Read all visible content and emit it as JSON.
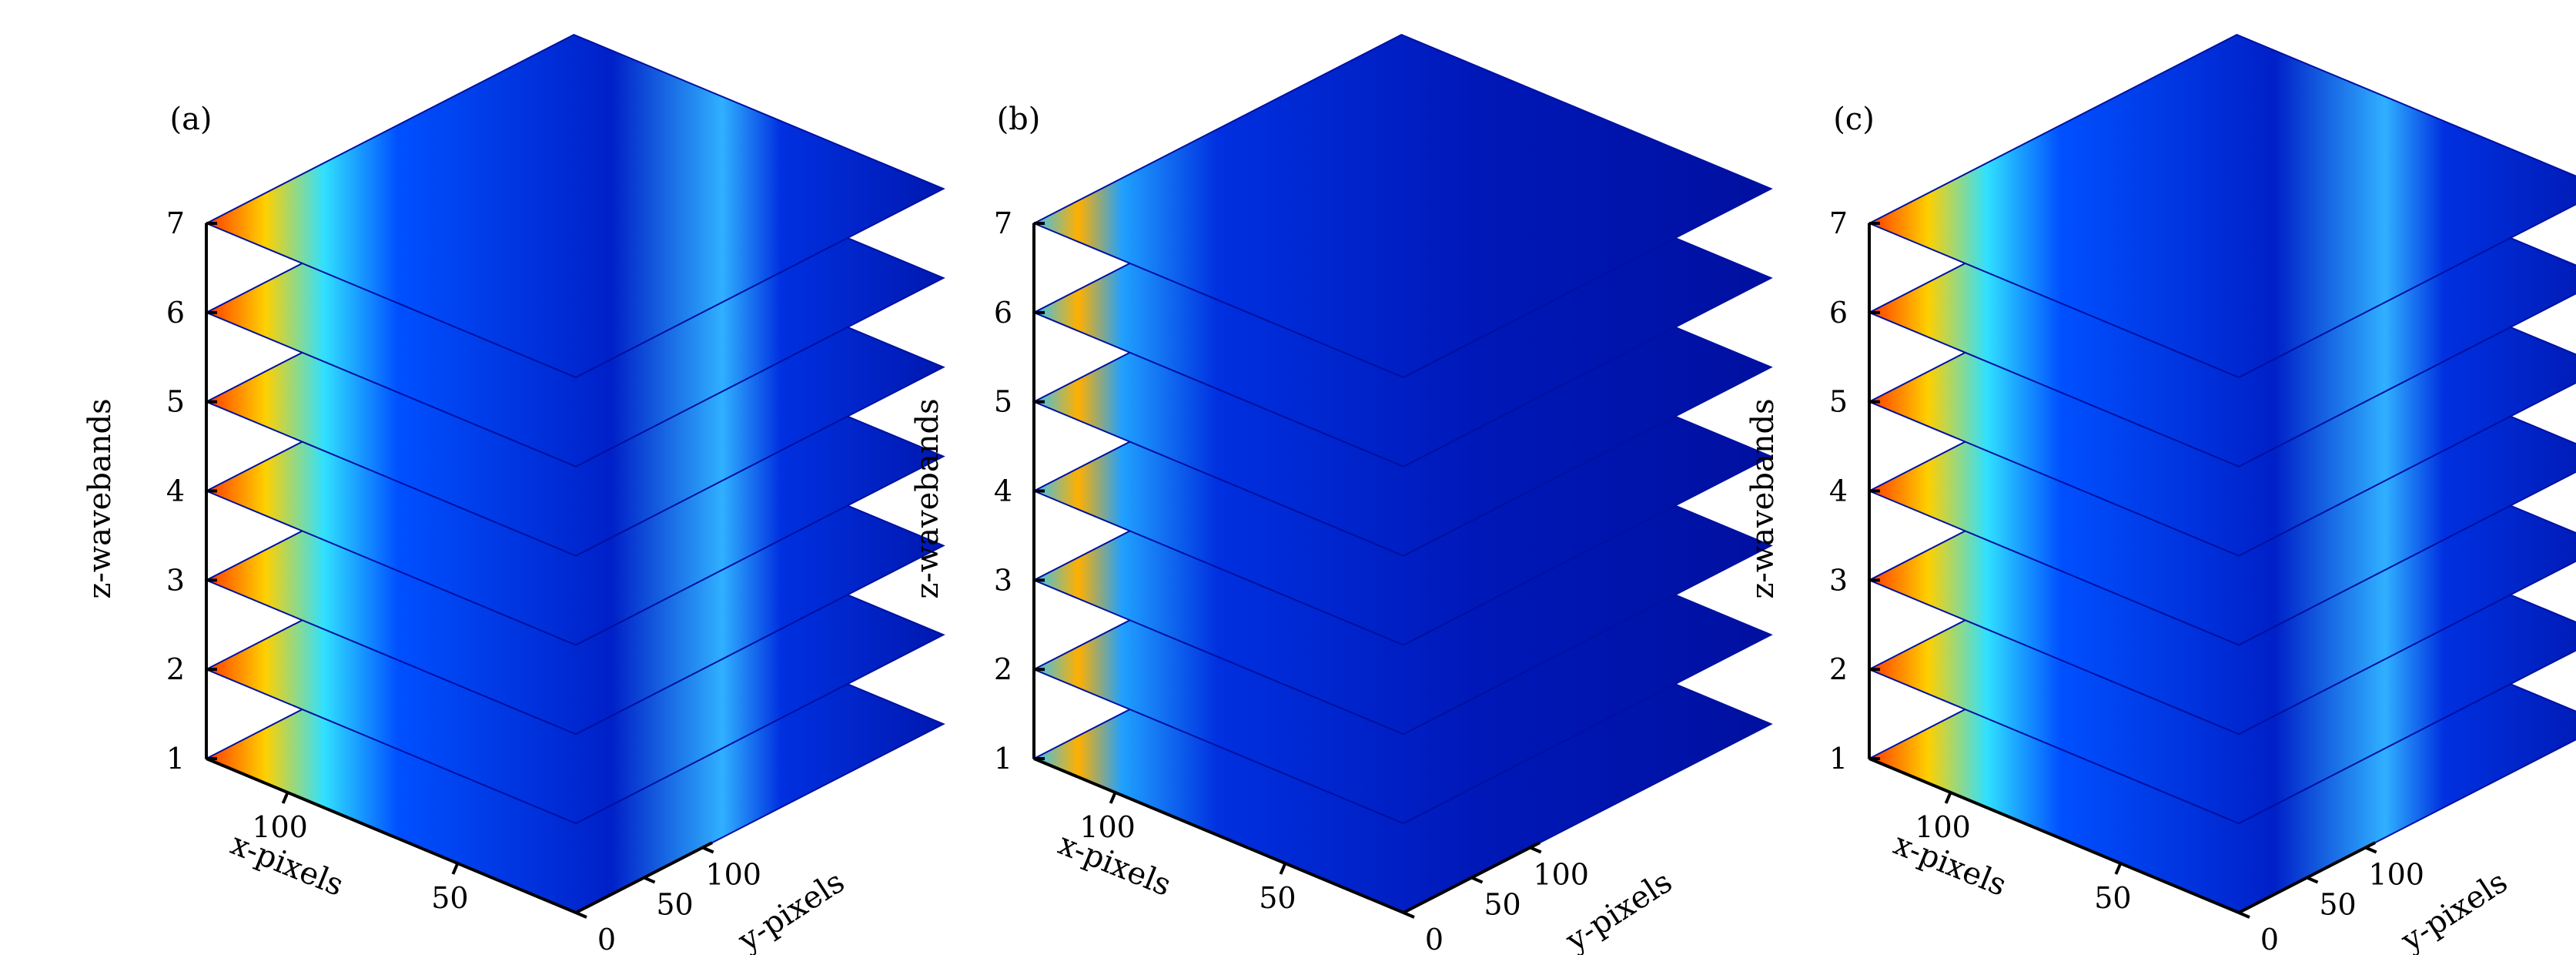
{
  "chart_data": [
    {
      "type": "heatmap",
      "panel_label": "(a)",
      "xlabel": "x-pixels",
      "ylabel": "y-pixels",
      "zlabel": "z-wavebands",
      "x_ticks": [
        "50",
        "100"
      ],
      "y_ticks": [
        "0",
        "50",
        "100"
      ],
      "z_ticks": [
        "1",
        "2",
        "3",
        "4",
        "5",
        "6",
        "7"
      ],
      "z_values": [
        1,
        2,
        3,
        4,
        5,
        6,
        7
      ],
      "colormap": "jet"
    },
    {
      "type": "heatmap",
      "panel_label": "(b)",
      "xlabel": "x-pixels",
      "ylabel": "y-pixels",
      "zlabel": "z-wavebands",
      "x_ticks": [
        "50",
        "100"
      ],
      "y_ticks": [
        "0",
        "50",
        "100"
      ],
      "z_ticks": [
        "1",
        "2",
        "3",
        "4",
        "5",
        "6",
        "7"
      ],
      "z_values": [
        1,
        2,
        3,
        4,
        5,
        6,
        7
      ],
      "colormap": "jet"
    },
    {
      "type": "heatmap",
      "panel_label": "(c)",
      "xlabel": "x-pixels",
      "ylabel": "y-pixels",
      "zlabel": "z-wavebands",
      "x_ticks": [
        "50",
        "100"
      ],
      "y_ticks": [
        "0",
        "50",
        "100"
      ],
      "z_ticks": [
        "1",
        "2",
        "3",
        "4",
        "5",
        "6",
        "7"
      ],
      "z_values": [
        1,
        2,
        3,
        4,
        5,
        6,
        7
      ],
      "colormap": "jet"
    }
  ],
  "colors": {
    "jet_dark_blue": "#00008f",
    "jet_blue": "#0000ff",
    "jet_cyan": "#00ffff",
    "jet_yellow": "#ffff00",
    "jet_red": "#ff0000",
    "jet_dark_red": "#800000"
  }
}
